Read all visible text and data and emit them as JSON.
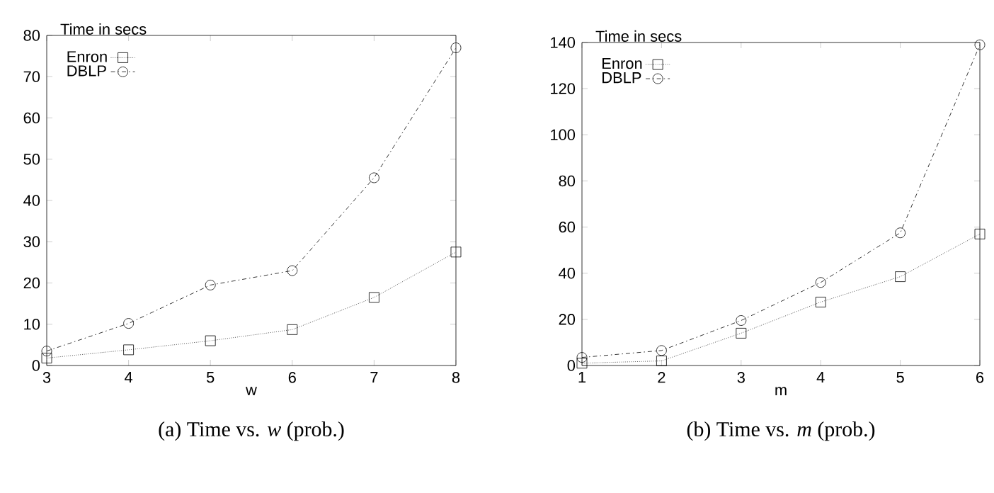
{
  "chart_data": [
    {
      "type": "line",
      "title": "(a) Time vs. *w* (prob.)",
      "xlabel": "w",
      "ylabel": "Time in secs",
      "x": [
        3,
        4,
        5,
        6,
        7,
        8
      ],
      "xlim": [
        3,
        8
      ],
      "xticks": [
        3,
        4,
        5,
        6,
        7,
        8
      ],
      "ylim": [
        0,
        80
      ],
      "yticks": [
        0,
        10,
        20,
        30,
        40,
        50,
        60,
        70,
        80
      ],
      "legend": "top left",
      "grid": false,
      "series": [
        {
          "name": "Enron",
          "color": "#000000",
          "marker": "square",
          "line_style": "dotted",
          "values": [
            1.8,
            3.8,
            6,
            8.7,
            16.5,
            27.5
          ]
        },
        {
          "name": "DBLP",
          "color": "#000000",
          "marker": "circle",
          "line_style": "dashed",
          "values": [
            3.5,
            10.2,
            19.5,
            23,
            45.5,
            77
          ]
        }
      ]
    },
    {
      "type": "line",
      "title": "(b) Time vs. *m* (prob.)",
      "xlabel": "m",
      "ylabel": "Time in secs",
      "x": [
        1,
        2,
        3,
        4,
        5,
        6
      ],
      "xlim": [
        1,
        6
      ],
      "xticks": [
        1,
        2,
        3,
        4,
        5,
        6
      ],
      "ylim": [
        0,
        140
      ],
      "yticks": [
        0,
        20,
        40,
        60,
        80,
        100,
        120,
        140
      ],
      "legend": "top left",
      "grid": false,
      "series": [
        {
          "name": "Enron",
          "color": "#000000",
          "marker": "square",
          "line_style": "dotted",
          "values": [
            1,
            2,
            14,
            27.5,
            38.5,
            57
          ]
        },
        {
          "name": "DBLP",
          "color": "#000000",
          "marker": "circle",
          "line_style": "dashed",
          "values": [
            3.5,
            6.5,
            19.5,
            36,
            57.5,
            139
          ]
        }
      ]
    }
  ]
}
